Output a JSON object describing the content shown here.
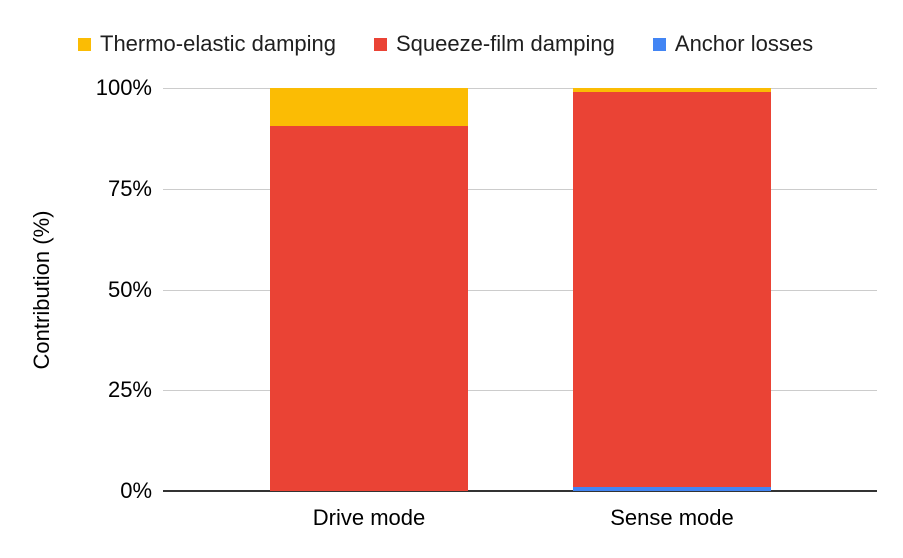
{
  "chart_data": {
    "type": "bar",
    "stacked": true,
    "stacked_mode": "percent",
    "title": "",
    "xlabel": "",
    "ylabel": "Contribution (%)",
    "categories": [
      "Drive mode",
      "Sense mode"
    ],
    "series": [
      {
        "name": "Thermo-elastic damping",
        "color": "#FBBC04",
        "values": [
          9.5,
          0.9
        ]
      },
      {
        "name": "Squeeze-film damping",
        "color": "#EA4335",
        "values": [
          90.5,
          98.1
        ]
      },
      {
        "name": "Anchor losses",
        "color": "#4285F4",
        "values": [
          0,
          1.0
        ]
      }
    ],
    "y_ticks": {
      "labels": [
        "100%",
        "75%",
        "50%",
        "25%",
        "0%"
      ],
      "values": [
        100,
        75,
        50,
        25,
        0
      ]
    },
    "ylim": [
      0,
      100
    ],
    "grid": true,
    "legend_position": "top"
  },
  "colors": {
    "background": "#ffffff",
    "gridline": "#cccccc",
    "axis_line": "#333333",
    "tick_text": "#000000",
    "legend_text": "#1f1f1f"
  }
}
